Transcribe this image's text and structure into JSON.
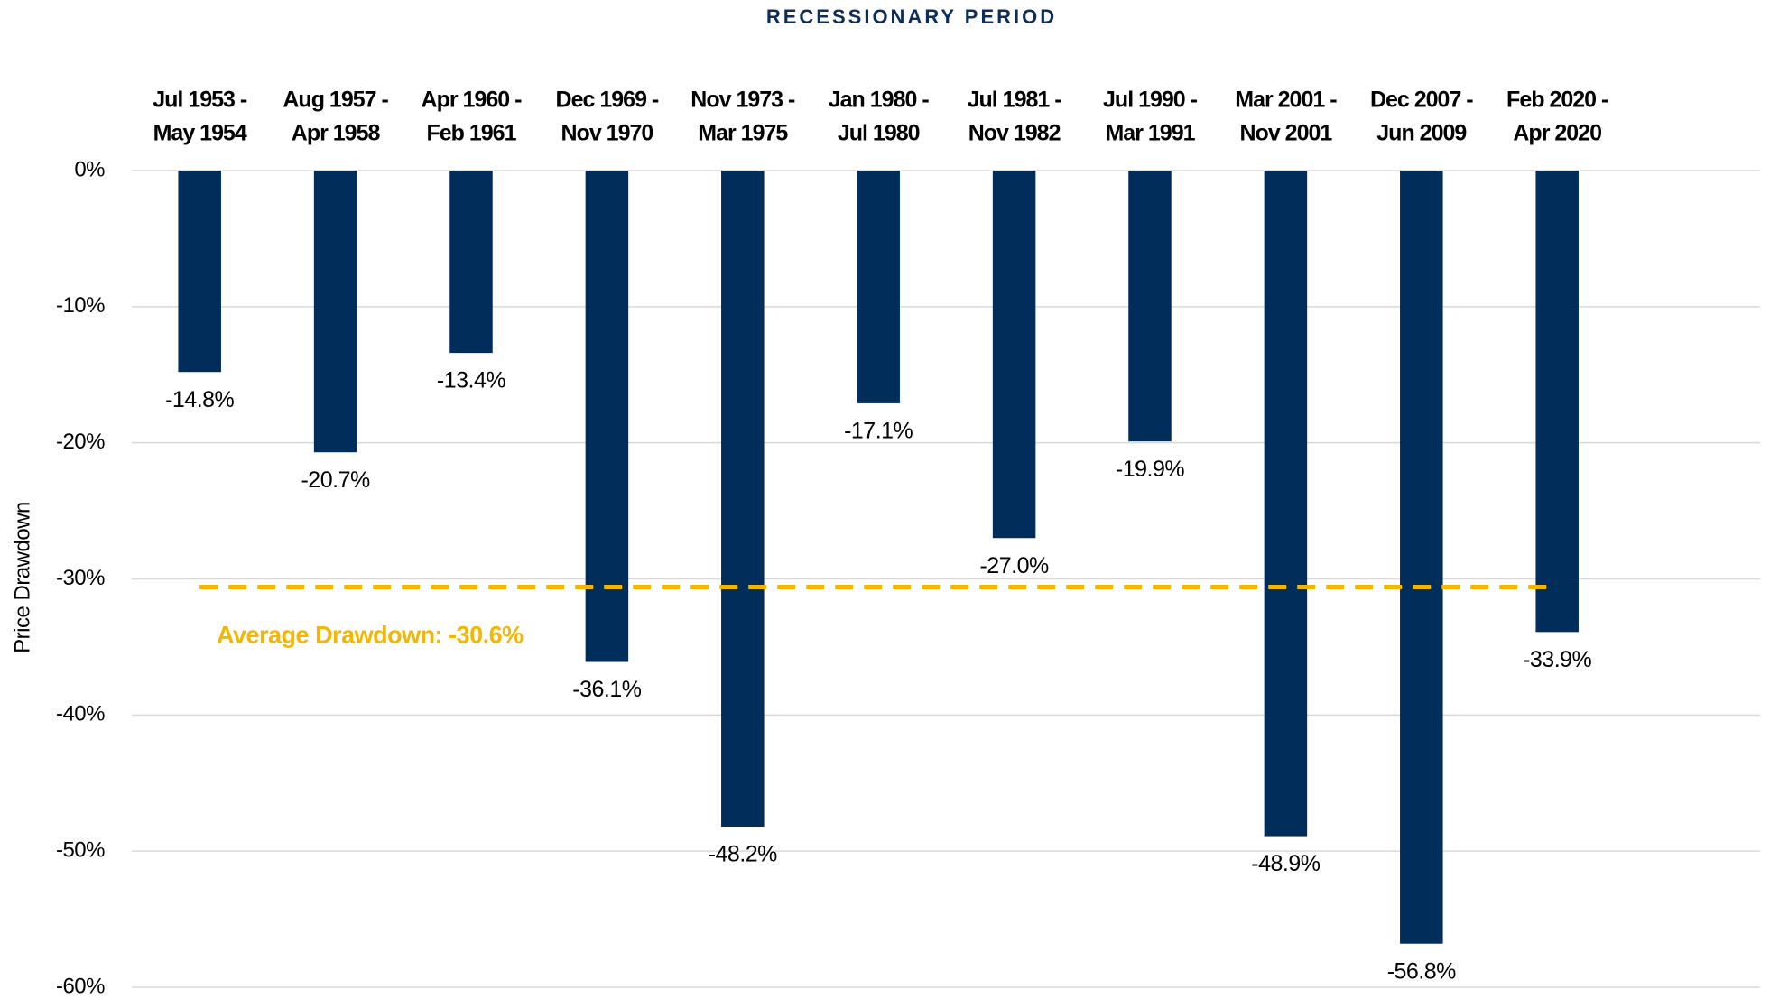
{
  "chart_data": {
    "type": "bar",
    "title": "RECESSIONARY PERIOD",
    "y_label": "Price Drawdown",
    "categories": [
      [
        "Jul 1953 -",
        "May 1954"
      ],
      [
        "Aug 1957 -",
        "Apr 1958"
      ],
      [
        "Apr 1960 -",
        "Feb 1961"
      ],
      [
        "Dec 1969 -",
        "Nov 1970"
      ],
      [
        "Nov 1973 -",
        "Mar 1975"
      ],
      [
        "Jan 1980 -",
        "Jul 1980"
      ],
      [
        "Jul 1981 -",
        "Nov 1982"
      ],
      [
        "Jul 1990 -",
        "Mar 1991"
      ],
      [
        "Mar 2001 -",
        "Nov 2001"
      ],
      [
        "Dec 2007 -",
        "Jun 2009"
      ],
      [
        "Feb 2020 -",
        "Apr 2020"
      ]
    ],
    "values": [
      -14.8,
      -20.7,
      -13.4,
      -36.1,
      -48.2,
      -17.1,
      -27.0,
      -19.9,
      -48.9,
      -56.8,
      -33.9
    ],
    "value_labels": [
      "-14.8%",
      "-20.7%",
      "-13.4%",
      "-36.1%",
      "-48.2%",
      "-17.1%",
      "-27.0%",
      "-19.9%",
      "-48.9%",
      "-56.8%",
      "-33.9%"
    ],
    "color": "#002d5a",
    "ylim": [
      -60,
      0
    ],
    "yticks": [
      {
        "value": 0,
        "label": "0%"
      },
      {
        "value": -10,
        "label": "-10%"
      },
      {
        "value": -20,
        "label": "-20%"
      },
      {
        "value": -30,
        "label": "-30%"
      },
      {
        "value": -40,
        "label": "-40%"
      },
      {
        "value": -50,
        "label": "-50%"
      },
      {
        "value": -60,
        "label": "-60%"
      }
    ],
    "grid": true,
    "average": {
      "value": -30.6,
      "label": "Average Drawdown: -30.6%",
      "color": "#f2b705"
    }
  }
}
